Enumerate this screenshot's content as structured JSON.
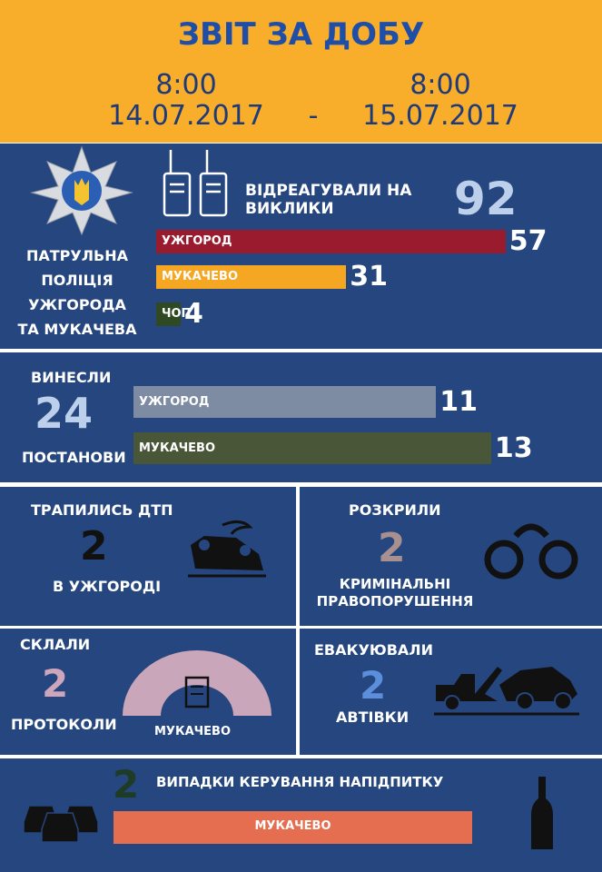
{
  "header": {
    "title": "ЗВІТ ЗА ДОБУ",
    "from_time": "8:00",
    "from_date": "14.07.2017",
    "separator": "-",
    "to_time": "8:00",
    "to_date": "15.07.2017"
  },
  "police": {
    "lines": [
      "ПАТРУЛЬНА",
      "ПОЛІЦІЯ",
      "УЖГОРОДА",
      "ТА МУКАЧЕВА"
    ]
  },
  "calls": {
    "lines": [
      "ВІДРЕАГУВАЛИ НА",
      "ВИКЛИКИ"
    ],
    "total": 92,
    "bars": [
      {
        "name": "УЖГОРОД",
        "value": 57,
        "color": "#9b1b2e"
      },
      {
        "name": "МУКАЧЕВО",
        "value": 31,
        "color": "#f5a623"
      },
      {
        "name": "ЧОП",
        "value": 4,
        "color": "#2f4a22"
      }
    ]
  },
  "rulings": {
    "label_top": "ВИНЕСЛИ",
    "total": 24,
    "label_bottom": "ПОСТАНОВИ",
    "bars": [
      {
        "name": "УЖГОРОД",
        "value": 11,
        "color": "#7d8ca3"
      },
      {
        "name": "МУКАЧЕВО",
        "value": 13,
        "color": "#4a5638"
      }
    ]
  },
  "accidents": {
    "label": "ТРАПИЛИСЬ ДТП",
    "value": 2,
    "place": "В УЖГОРОДІ"
  },
  "crimes": {
    "label": "РОЗКРИЛИ",
    "value": 2,
    "lines": [
      "КРИМІНАЛЬНІ",
      "ПРАВОПОРУШЕННЯ"
    ]
  },
  "protocols": {
    "label": "СКЛАЛИ",
    "value": 2,
    "caption": "ПРОТОКОЛИ",
    "place": "МУКАЧЕВО"
  },
  "evacuated": {
    "label": "ЕВАКУЮВАЛИ",
    "value": 2,
    "caption": "АВТІВКИ"
  },
  "drunk": {
    "value": 2,
    "label": "ВИПАДКИ КЕРУВАННЯ НАПІДПИТКУ",
    "place": "МУКАЧЕВО"
  }
}
